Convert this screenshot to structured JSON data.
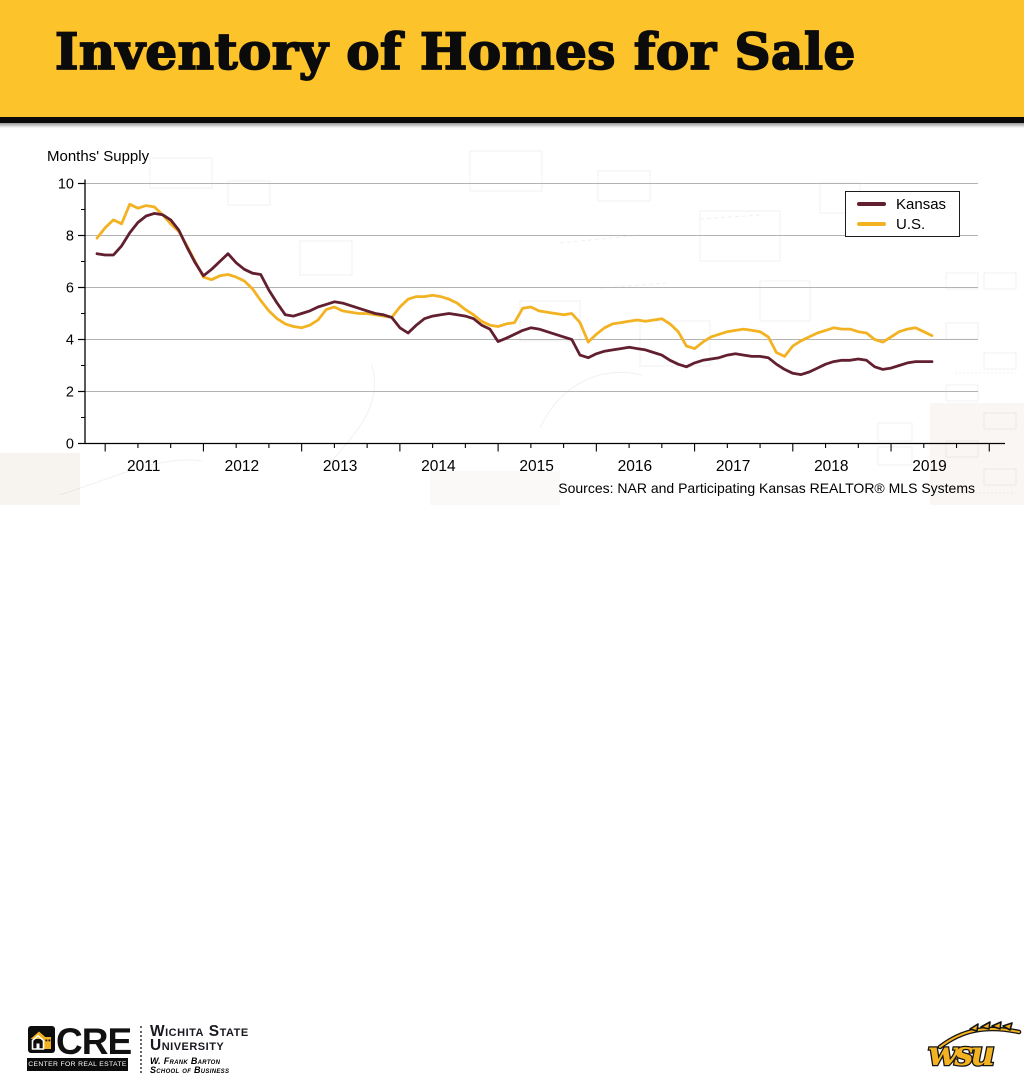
{
  "banner": {
    "title": "Inventory of Homes for Sale",
    "background_color": "#FDC32B"
  },
  "chart": {
    "axis_title": "Months' Supply",
    "source_note": "Sources: NAR and Participating Kansas REALTOR® MLS Systems"
  },
  "chart_data": {
    "type": "line",
    "ylabel": "Months' Supply",
    "ylim": [
      0,
      10
    ],
    "yticks": [
      0,
      2,
      4,
      6,
      8,
      10
    ],
    "grid": true,
    "legend_position": "top-right",
    "x_interval": "monthly",
    "x_start": "2010-12",
    "x_tick_labels": [
      "2011",
      "2012",
      "2013",
      "2014",
      "2015",
      "2016",
      "2017",
      "2018",
      "2019"
    ],
    "series": [
      {
        "name": "Kansas",
        "color": "#611F2F",
        "values": [
          7.3,
          7.25,
          7.25,
          7.6,
          8.1,
          8.5,
          8.75,
          8.85,
          8.8,
          8.6,
          8.2,
          7.55,
          6.95,
          6.45,
          6.7,
          7.0,
          7.3,
          6.95,
          6.7,
          6.55,
          6.5,
          5.9,
          5.4,
          4.95,
          4.9,
          5.0,
          5.1,
          5.25,
          5.35,
          5.45,
          5.4,
          5.3,
          5.2,
          5.1,
          5.0,
          4.95,
          4.85,
          4.45,
          4.25,
          4.55,
          4.8,
          4.9,
          4.95,
          5.0,
          4.95,
          4.9,
          4.8,
          4.55,
          4.4,
          3.92,
          4.05,
          4.2,
          4.35,
          4.45,
          4.4,
          4.3,
          4.2,
          4.1,
          4.0,
          3.4,
          3.3,
          3.45,
          3.55,
          3.6,
          3.65,
          3.7,
          3.65,
          3.6,
          3.5,
          3.4,
          3.2,
          3.05,
          2.95,
          3.1,
          3.2,
          3.25,
          3.3,
          3.4,
          3.45,
          3.4,
          3.35,
          3.35,
          3.3,
          3.05,
          2.85,
          2.7,
          2.65,
          2.75,
          2.9,
          3.05,
          3.15,
          3.2,
          3.2,
          3.25,
          3.2,
          2.95,
          2.85,
          2.9,
          3.0,
          3.1,
          3.15,
          3.15,
          3.15
        ]
      },
      {
        "name": "U.S.",
        "color": "#F2B222",
        "values": [
          7.9,
          8.3,
          8.6,
          8.45,
          9.2,
          9.05,
          9.15,
          9.1,
          8.8,
          8.45,
          8.15,
          7.6,
          7.0,
          6.4,
          6.3,
          6.45,
          6.5,
          6.4,
          6.25,
          5.95,
          5.5,
          5.1,
          4.8,
          4.6,
          4.5,
          4.45,
          4.55,
          4.75,
          5.15,
          5.25,
          5.1,
          5.05,
          5.0,
          5.0,
          4.95,
          4.9,
          4.85,
          5.25,
          5.55,
          5.65,
          5.65,
          5.7,
          5.65,
          5.55,
          5.4,
          5.15,
          4.95,
          4.7,
          4.55,
          4.5,
          4.6,
          4.65,
          5.2,
          5.25,
          5.1,
          5.05,
          5.0,
          4.95,
          5.0,
          4.65,
          3.9,
          4.2,
          4.45,
          4.6,
          4.65,
          4.7,
          4.75,
          4.7,
          4.75,
          4.8,
          4.6,
          4.3,
          3.75,
          3.65,
          3.9,
          4.1,
          4.2,
          4.3,
          4.35,
          4.4,
          4.35,
          4.3,
          4.1,
          3.5,
          3.35,
          3.75,
          3.95,
          4.1,
          4.25,
          4.35,
          4.45,
          4.4,
          4.4,
          4.3,
          4.25,
          4.0,
          3.9,
          4.1,
          4.3,
          4.4,
          4.45,
          4.3,
          4.15
        ]
      }
    ]
  },
  "footer": {
    "cre": {
      "acronym": "CRE",
      "tagline": "CENTER FOR REAL ESTATE"
    },
    "university": {
      "line1": "Wichita State",
      "line2": "University"
    },
    "barton": {
      "line1": "W. Frank Barton",
      "line2": "School of Business"
    },
    "wsu_monogram": "wsu"
  }
}
